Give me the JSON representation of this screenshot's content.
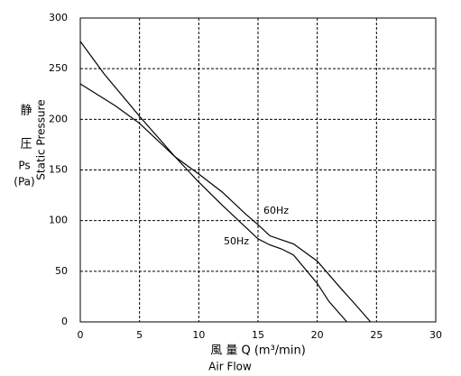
{
  "chart_data": {
    "type": "line",
    "x_label": "風 量  Q   (m³/min)",
    "x_label_2": "Air Flow",
    "y_label_lines": [
      "静",
      "圧",
      "Ps",
      "(Pa)"
    ],
    "y_label": "Static Pressure",
    "series": [
      {
        "name": "50Hz",
        "color": "#000000",
        "x": [
          0,
          2,
          5,
          8,
          10,
          12,
          14,
          15,
          16,
          17,
          18,
          20,
          21,
          22.5
        ],
        "values": [
          277,
          245,
          203,
          163,
          138,
          115,
          93,
          82,
          76,
          72,
          66,
          38,
          20,
          0
        ]
      },
      {
        "name": "60Hz",
        "color": "#000000",
        "x": [
          0,
          3,
          5,
          8,
          10,
          12,
          14,
          15,
          16,
          17,
          18,
          20,
          22,
          23,
          24.5
        ],
        "values": [
          235,
          213,
          196,
          163,
          146,
          128,
          106,
          96,
          85,
          81,
          77,
          60,
          33,
          20,
          0
        ]
      }
    ],
    "xlim": [
      0,
      30
    ],
    "xticks": [
      0,
      5,
      10,
      15,
      20,
      25,
      30
    ],
    "ylim": [
      0,
      300
    ],
    "yticks": [
      0,
      50,
      100,
      150,
      200,
      250,
      300
    ],
    "grid": true
  }
}
